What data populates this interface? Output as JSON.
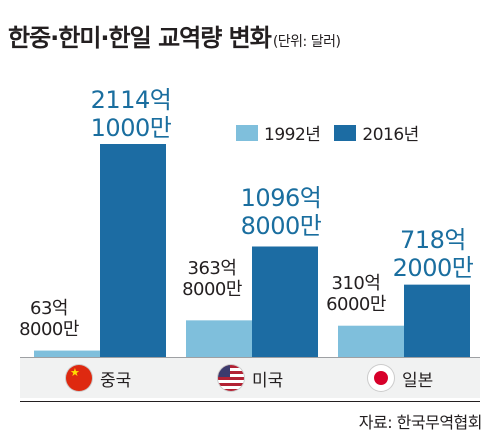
{
  "title": {
    "main": "한중·한미·한일 교역량 변화",
    "unit": "(단위: 달러)"
  },
  "colors": {
    "light": "#7fbfdc",
    "dark": "#1c6ca3",
    "dark_label": "#1a6e9f"
  },
  "source": "자료: 한국무역협회",
  "chart_data": {
    "type": "bar",
    "categories": [
      "중국",
      "미국",
      "일본"
    ],
    "series": [
      {
        "name": "1992년",
        "values": [
          63.8,
          363.8,
          310.6
        ],
        "labels": [
          [
            "63억",
            "8000만"
          ],
          [
            "363억",
            "8000만"
          ],
          [
            "310억",
            "6000만"
          ]
        ]
      },
      {
        "name": "2016년",
        "values": [
          2114.1,
          1096.8,
          718.2
        ],
        "labels": [
          [
            "2114억",
            "1000만"
          ],
          [
            "1096억",
            "8000만"
          ],
          [
            "718억",
            "2000만"
          ]
        ]
      }
    ],
    "value_unit": "억 달러",
    "category_icons": [
      "china-flag-icon",
      "usa-flag-icon",
      "japan-flag-icon"
    ]
  }
}
